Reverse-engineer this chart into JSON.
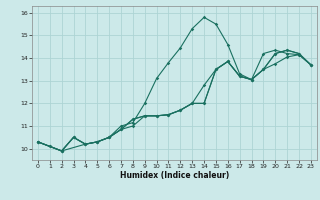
{
  "xlabel": "Humidex (Indice chaleur)",
  "xlim": [
    -0.5,
    23.5
  ],
  "ylim": [
    9.5,
    16.3
  ],
  "background_color": "#cce9e9",
  "grid_color": "#add4d4",
  "line_color": "#1a7060",
  "lines": [
    {
      "x": [
        0,
        1,
        2,
        3,
        4,
        5,
        6,
        7,
        8,
        9,
        10,
        11,
        12,
        13,
        14,
        15,
        16,
        17,
        18,
        19,
        20,
        21,
        22,
        23
      ],
      "y": [
        10.3,
        10.1,
        9.9,
        10.5,
        10.2,
        10.3,
        10.5,
        11.0,
        11.15,
        12.0,
        13.1,
        13.8,
        14.45,
        15.3,
        15.8,
        15.5,
        14.6,
        13.3,
        13.05,
        14.2,
        14.35,
        14.2,
        14.15,
        13.7
      ]
    },
    {
      "x": [
        0,
        1,
        2,
        3,
        4,
        5,
        6,
        7,
        8,
        9,
        10,
        11,
        12,
        13,
        14,
        15,
        16,
        17,
        18,
        19,
        20,
        21,
        22,
        23
      ],
      "y": [
        10.3,
        10.1,
        9.9,
        10.5,
        10.2,
        10.3,
        10.5,
        10.85,
        11.3,
        11.45,
        11.45,
        11.5,
        11.7,
        12.0,
        12.8,
        13.5,
        13.85,
        13.2,
        13.05,
        13.5,
        13.75,
        14.05,
        14.15,
        13.7
      ]
    },
    {
      "x": [
        0,
        2,
        3,
        4,
        5,
        6,
        7,
        8,
        9,
        10,
        11,
        12,
        13,
        14,
        15,
        16,
        17,
        18,
        19,
        20,
        21,
        22,
        23
      ],
      "y": [
        10.3,
        9.9,
        10.5,
        10.2,
        10.3,
        10.5,
        10.85,
        11.0,
        11.45,
        11.45,
        11.5,
        11.7,
        12.0,
        12.0,
        13.5,
        13.85,
        13.2,
        13.05,
        13.5,
        14.2,
        14.35,
        14.2,
        13.7
      ]
    },
    {
      "x": [
        0,
        2,
        4,
        5,
        6,
        7,
        8,
        9,
        10,
        11,
        12,
        13,
        14,
        15,
        16,
        17,
        18,
        19,
        20,
        21,
        22,
        23
      ],
      "y": [
        10.3,
        9.9,
        10.2,
        10.3,
        10.5,
        10.85,
        11.3,
        11.45,
        11.45,
        11.5,
        11.7,
        12.0,
        12.0,
        13.5,
        13.85,
        13.2,
        13.05,
        13.5,
        14.2,
        14.35,
        14.2,
        13.7
      ]
    }
  ]
}
